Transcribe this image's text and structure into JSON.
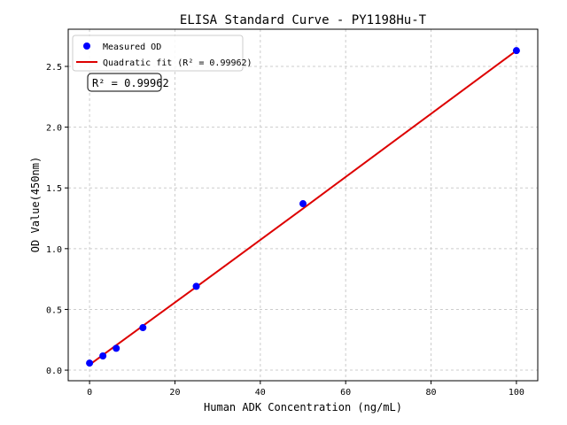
{
  "chart_data": {
    "type": "scatter",
    "title": "ELISA Standard Curve - PY1198Hu-T",
    "xlabel": "Human ADK Concentration (ng/mL)",
    "ylabel": "OD Value(450nm)",
    "xlim": [
      -5,
      105
    ],
    "ylim": [
      -0.087,
      2.806
    ],
    "xticks": [
      0,
      20,
      40,
      60,
      80,
      100
    ],
    "xtick_labels": [
      "0",
      "20",
      "40",
      "60",
      "80",
      "100"
    ],
    "yticks": [
      0,
      0.5,
      1.0,
      1.5,
      2.0,
      2.5
    ],
    "ytick_labels": [
      "0.0",
      "0.5",
      "1.0",
      "1.5",
      "2.0",
      "2.5"
    ],
    "grid": true,
    "legend_position": "top-left",
    "series": [
      {
        "name": "Measured OD",
        "kind": "scatter",
        "color": "#0000ff",
        "x": [
          0,
          3.125,
          6.25,
          12.5,
          25,
          50,
          100
        ],
        "y": [
          0.058,
          0.117,
          0.18,
          0.35,
          0.69,
          1.37,
          2.63
        ]
      },
      {
        "name": "Quadratic fit (R² = 0.99962)",
        "kind": "line",
        "color": "#dd0000",
        "x": [
          0,
          25,
          50,
          75,
          100
        ],
        "y": [
          0.045,
          0.685,
          1.33,
          1.98,
          2.63
        ]
      }
    ],
    "annotation": "R² = 0.99962"
  }
}
